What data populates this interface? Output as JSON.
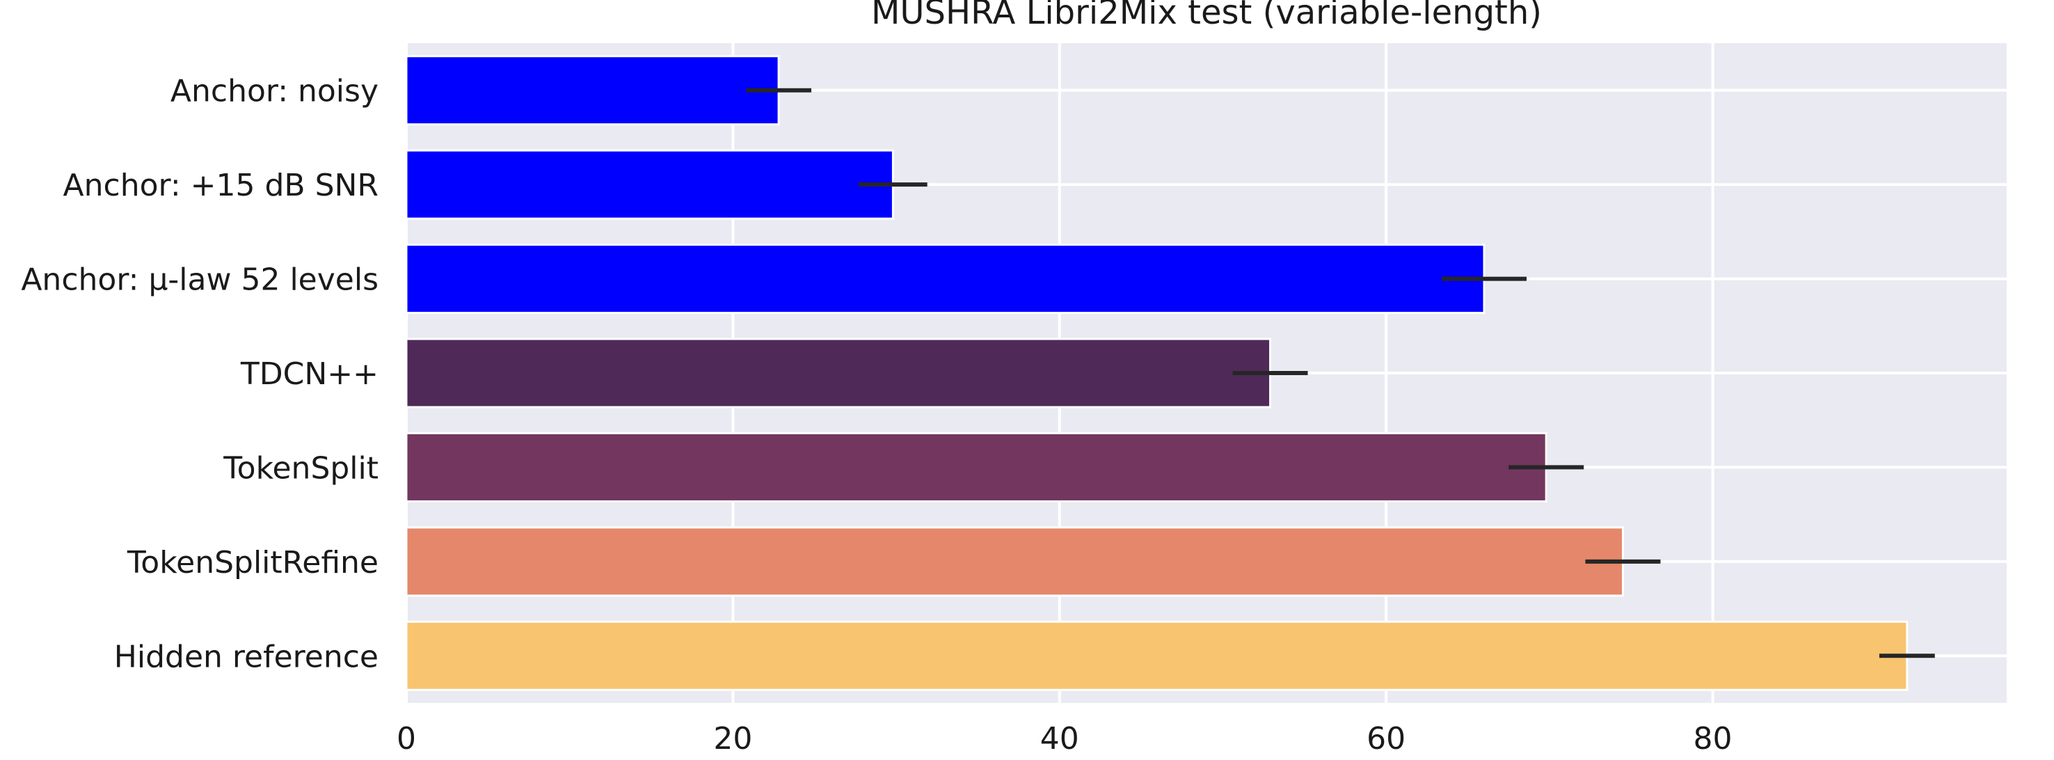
{
  "chart_data": {
    "type": "bar",
    "orientation": "horizontal",
    "title": "MUSHRA Libri2Mix test (variable-length)",
    "xlabel": "",
    "ylabel": "",
    "xlim": [
      0,
      98
    ],
    "xticks": [
      0,
      20,
      40,
      60,
      80
    ],
    "grid": true,
    "categories": [
      "Anchor: noisy",
      "Anchor: +15 dB SNR",
      "Anchor: μ-law 52 levels",
      "TDCN++",
      "TokenSplit",
      "TokenSplitRefine",
      "Hidden reference"
    ],
    "values": [
      22.8,
      29.8,
      66.0,
      52.9,
      69.8,
      74.5,
      91.9
    ],
    "error": [
      2.0,
      2.1,
      2.6,
      2.3,
      2.3,
      2.3,
      1.7
    ],
    "colors": [
      "#0000ff",
      "#0000ff",
      "#0000ff",
      "#4f2a59",
      "#73365f",
      "#e5876a",
      "#f8c470"
    ]
  }
}
